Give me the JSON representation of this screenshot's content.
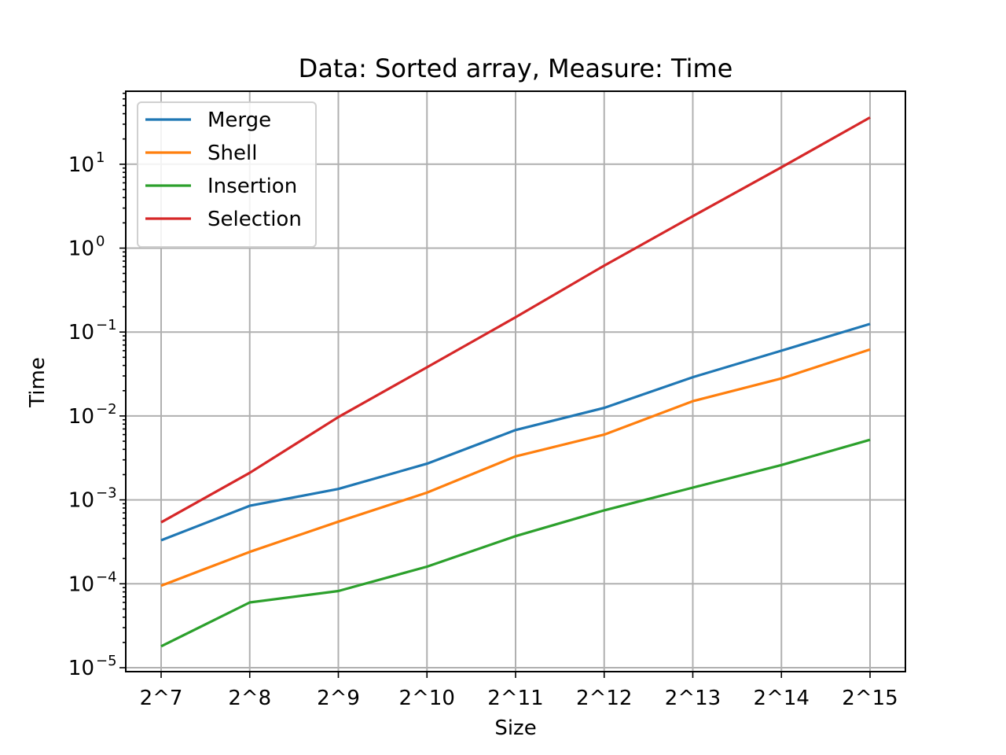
{
  "chart_data": {
    "type": "line",
    "title": "Data: Sorted array, Measure: Time",
    "xlabel": "Size",
    "ylabel": "Time",
    "yscale": "log",
    "ylim": [
      1e-05,
      70
    ],
    "y_major_ticks": [
      {
        "value": 1e-05,
        "base": "10",
        "exp": "−5"
      },
      {
        "value": 0.0001,
        "base": "10",
        "exp": "−4"
      },
      {
        "value": 0.001,
        "base": "10",
        "exp": "−3"
      },
      {
        "value": 0.01,
        "base": "10",
        "exp": "−2"
      },
      {
        "value": 0.1,
        "base": "10",
        "exp": "−1"
      },
      {
        "value": 1,
        "base": "10",
        "exp": "0"
      },
      {
        "value": 10,
        "base": "10",
        "exp": "1"
      }
    ],
    "grid": true,
    "legend_position": "top-left",
    "categories": [
      "2^7",
      "2^8",
      "2^9",
      "2^10",
      "2^11",
      "2^12",
      "2^13",
      "2^14",
      "2^15"
    ],
    "series": [
      {
        "name": "Merge",
        "color": "#1f77b4",
        "values": [
          0.00033,
          0.00085,
          0.00135,
          0.0027,
          0.0068,
          0.0125,
          0.029,
          0.06,
          0.125
        ]
      },
      {
        "name": "Shell",
        "color": "#ff7f0e",
        "values": [
          9.5e-05,
          0.00024,
          0.00055,
          0.00122,
          0.0033,
          0.006,
          0.015,
          0.028,
          0.062
        ]
      },
      {
        "name": "Insertion",
        "color": "#2ca02c",
        "values": [
          1.8e-05,
          6e-05,
          8.2e-05,
          0.00016,
          0.00037,
          0.00075,
          0.0014,
          0.0026,
          0.0052
        ]
      },
      {
        "name": "Selection",
        "color": "#d62728",
        "values": [
          0.00054,
          0.0021,
          0.0097,
          0.038,
          0.15,
          0.62,
          2.4,
          9.2,
          36
        ]
      }
    ]
  }
}
